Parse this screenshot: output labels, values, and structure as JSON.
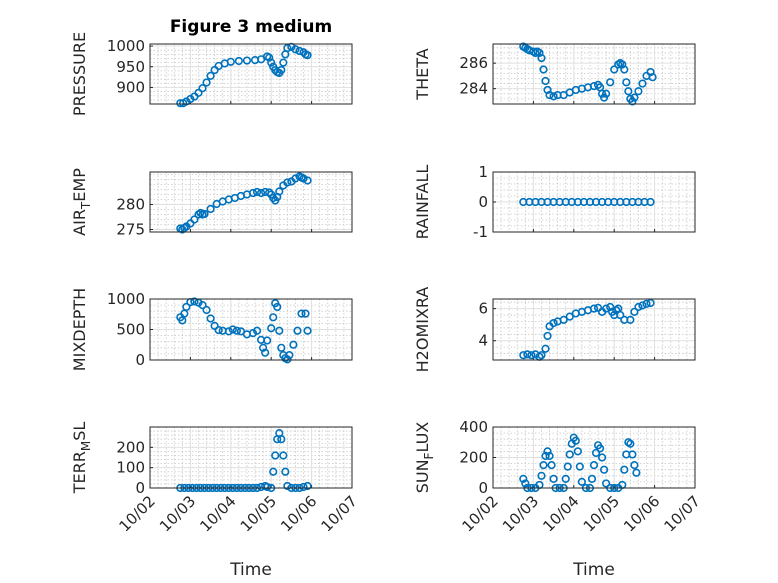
{
  "figure": {
    "title": "Figure 3 medium",
    "xlabel": "Time",
    "xticks": [
      "10/02",
      "10/03",
      "10/04",
      "10/05",
      "10/06",
      "10/07"
    ],
    "marker_color": "#0072BD"
  },
  "chart_data": [
    {
      "type": "scatter",
      "name": "PRESSURE",
      "ylabel_parts": [
        "PRESSURE"
      ],
      "xlim": [
        0,
        5
      ],
      "ylim": [
        860,
        1005
      ],
      "yticks": [
        900,
        950,
        1000
      ],
      "grid": true,
      "points": [
        [
          0.75,
          862
        ],
        [
          0.82,
          862
        ],
        [
          0.9,
          866
        ],
        [
          1.0,
          872
        ],
        [
          1.1,
          878
        ],
        [
          1.2,
          887
        ],
        [
          1.3,
          898
        ],
        [
          1.4,
          912
        ],
        [
          1.5,
          928
        ],
        [
          1.6,
          942
        ],
        [
          1.7,
          952
        ],
        [
          1.85,
          958
        ],
        [
          2.0,
          962
        ],
        [
          2.2,
          964
        ],
        [
          2.4,
          965
        ],
        [
          2.6,
          966
        ],
        [
          2.75,
          968
        ],
        [
          2.9,
          975
        ],
        [
          2.95,
          972
        ],
        [
          3.0,
          960
        ],
        [
          3.05,
          950
        ],
        [
          3.1,
          942
        ],
        [
          3.15,
          937
        ],
        [
          3.2,
          935
        ],
        [
          3.25,
          942
        ],
        [
          3.3,
          960
        ],
        [
          3.35,
          980
        ],
        [
          3.4,
          995
        ],
        [
          3.5,
          998
        ],
        [
          3.6,
          992
        ],
        [
          3.7,
          988
        ],
        [
          3.8,
          985
        ],
        [
          3.85,
          980
        ],
        [
          3.9,
          978
        ]
      ]
    },
    {
      "type": "scatter",
      "name": "THETA",
      "ylabel_parts": [
        "THETA"
      ],
      "xlim": [
        0,
        5
      ],
      "ylim": [
        282.8,
        287.5
      ],
      "yticks": [
        284,
        286
      ],
      "grid": true,
      "points": [
        [
          0.75,
          287.3
        ],
        [
          0.8,
          287.2
        ],
        [
          0.85,
          287.1
        ],
        [
          0.9,
          287.0
        ],
        [
          1.0,
          286.9
        ],
        [
          1.05,
          286.8
        ],
        [
          1.1,
          286.9
        ],
        [
          1.15,
          286.8
        ],
        [
          1.2,
          286.4
        ],
        [
          1.25,
          285.5
        ],
        [
          1.3,
          284.6
        ],
        [
          1.35,
          283.9
        ],
        [
          1.4,
          283.5
        ],
        [
          1.5,
          283.4
        ],
        [
          1.6,
          283.5
        ],
        [
          1.75,
          283.5
        ],
        [
          1.9,
          283.7
        ],
        [
          2.05,
          283.9
        ],
        [
          2.2,
          284.0
        ],
        [
          2.35,
          284.1
        ],
        [
          2.5,
          284.2
        ],
        [
          2.6,
          284.3
        ],
        [
          2.65,
          284.1
        ],
        [
          2.7,
          283.6
        ],
        [
          2.75,
          283.3
        ],
        [
          2.8,
          283.6
        ],
        [
          2.9,
          284.5
        ],
        [
          3.0,
          285.5
        ],
        [
          3.1,
          285.9
        ],
        [
          3.15,
          286.0
        ],
        [
          3.2,
          285.9
        ],
        [
          3.25,
          285.5
        ],
        [
          3.3,
          284.5
        ],
        [
          3.35,
          283.8
        ],
        [
          3.4,
          283.2
        ],
        [
          3.45,
          283.0
        ],
        [
          3.5,
          283.3
        ],
        [
          3.6,
          283.8
        ],
        [
          3.7,
          284.4
        ],
        [
          3.8,
          285.0
        ],
        [
          3.9,
          285.3
        ],
        [
          3.95,
          284.9
        ]
      ]
    },
    {
      "type": "scatter",
      "name": "AIR_TEMP",
      "ylabel_parts": [
        "AIR",
        "T",
        "EMP"
      ],
      "xlim": [
        0,
        5
      ],
      "ylim": [
        274.5,
        286.5
      ],
      "yticks": [
        275,
        280
      ],
      "grid": true,
      "points": [
        [
          0.75,
          275.2
        ],
        [
          0.8,
          275.0
        ],
        [
          0.85,
          275.3
        ],
        [
          0.9,
          275.6
        ],
        [
          1.0,
          276.2
        ],
        [
          1.1,
          277.0
        ],
        [
          1.2,
          278.0
        ],
        [
          1.25,
          278.3
        ],
        [
          1.3,
          278.0
        ],
        [
          1.35,
          278.1
        ],
        [
          1.5,
          279.1
        ],
        [
          1.65,
          280.1
        ],
        [
          1.8,
          280.6
        ],
        [
          1.95,
          281.0
        ],
        [
          2.1,
          281.3
        ],
        [
          2.25,
          281.7
        ],
        [
          2.4,
          282.0
        ],
        [
          2.55,
          282.3
        ],
        [
          2.65,
          282.5
        ],
        [
          2.75,
          282.3
        ],
        [
          2.85,
          282.5
        ],
        [
          2.95,
          282.4
        ],
        [
          3.0,
          282.0
        ],
        [
          3.05,
          281.3
        ],
        [
          3.1,
          280.8
        ],
        [
          3.15,
          281.5
        ],
        [
          3.2,
          282.6
        ],
        [
          3.3,
          283.8
        ],
        [
          3.4,
          284.4
        ],
        [
          3.5,
          284.6
        ],
        [
          3.6,
          285.2
        ],
        [
          3.7,
          285.6
        ],
        [
          3.75,
          285.4
        ],
        [
          3.8,
          285.2
        ],
        [
          3.9,
          284.8
        ]
      ]
    },
    {
      "type": "scatter",
      "name": "RAINFALL",
      "ylabel_parts": [
        "RAINFALL"
      ],
      "xlim": [
        0,
        5
      ],
      "ylim": [
        -1,
        1
      ],
      "yticks": [
        -1,
        0,
        1
      ],
      "grid": true,
      "points": [
        [
          0.75,
          0
        ],
        [
          0.9,
          0
        ],
        [
          1.05,
          0
        ],
        [
          1.2,
          0
        ],
        [
          1.35,
          0
        ],
        [
          1.5,
          0
        ],
        [
          1.65,
          0
        ],
        [
          1.8,
          0
        ],
        [
          1.95,
          0
        ],
        [
          2.1,
          0
        ],
        [
          2.25,
          0
        ],
        [
          2.4,
          0
        ],
        [
          2.55,
          0
        ],
        [
          2.7,
          0
        ],
        [
          2.85,
          0
        ],
        [
          3.0,
          0
        ],
        [
          3.15,
          0
        ],
        [
          3.3,
          0
        ],
        [
          3.45,
          0
        ],
        [
          3.6,
          0
        ],
        [
          3.75,
          0
        ],
        [
          3.9,
          0
        ]
      ]
    },
    {
      "type": "scatter",
      "name": "MIXDEPTH",
      "ylabel_parts": [
        "MIXDEPTH"
      ],
      "xlim": [
        0,
        5
      ],
      "ylim": [
        0,
        1000
      ],
      "yticks": [
        0,
        500,
        1000
      ],
      "grid": true,
      "points": [
        [
          0.75,
          700
        ],
        [
          0.8,
          650
        ],
        [
          0.85,
          760
        ],
        [
          0.9,
          870
        ],
        [
          1.0,
          950
        ],
        [
          1.1,
          960
        ],
        [
          1.2,
          940
        ],
        [
          1.3,
          900
        ],
        [
          1.4,
          820
        ],
        [
          1.5,
          680
        ],
        [
          1.6,
          560
        ],
        [
          1.7,
          490
        ],
        [
          1.8,
          480
        ],
        [
          1.95,
          470
        ],
        [
          2.05,
          500
        ],
        [
          2.15,
          480
        ],
        [
          2.25,
          470
        ],
        [
          2.4,
          420
        ],
        [
          2.55,
          440
        ],
        [
          2.65,
          480
        ],
        [
          2.75,
          330
        ],
        [
          2.8,
          200
        ],
        [
          2.85,
          120
        ],
        [
          2.9,
          320
        ],
        [
          3.0,
          520
        ],
        [
          3.05,
          700
        ],
        [
          3.1,
          930
        ],
        [
          3.15,
          870
        ],
        [
          3.2,
          480
        ],
        [
          3.25,
          200
        ],
        [
          3.3,
          80
        ],
        [
          3.35,
          30
        ],
        [
          3.4,
          10
        ],
        [
          3.45,
          80
        ],
        [
          3.55,
          250
        ],
        [
          3.65,
          480
        ],
        [
          3.75,
          760
        ],
        [
          3.85,
          760
        ],
        [
          3.9,
          480
        ]
      ]
    },
    {
      "type": "scatter",
      "name": "H2OMIXRA",
      "ylabel_parts": [
        "H2OMIXRA"
      ],
      "xlim": [
        0,
        5
      ],
      "ylim": [
        2.8,
        6.6
      ],
      "yticks": [
        4,
        6
      ],
      "grid": true,
      "points": [
        [
          0.75,
          3.1
        ],
        [
          0.85,
          3.15
        ],
        [
          0.95,
          3.1
        ],
        [
          1.05,
          3.15
        ],
        [
          1.15,
          3.0
        ],
        [
          1.2,
          3.1
        ],
        [
          1.3,
          3.5
        ],
        [
          1.35,
          4.3
        ],
        [
          1.4,
          4.9
        ],
        [
          1.5,
          5.1
        ],
        [
          1.6,
          5.2
        ],
        [
          1.75,
          5.3
        ],
        [
          1.9,
          5.5
        ],
        [
          2.05,
          5.7
        ],
        [
          2.2,
          5.8
        ],
        [
          2.35,
          5.9
        ],
        [
          2.5,
          6.0
        ],
        [
          2.6,
          6.05
        ],
        [
          2.7,
          5.8
        ],
        [
          2.8,
          6.0
        ],
        [
          2.9,
          6.1
        ],
        [
          2.95,
          5.8
        ],
        [
          3.0,
          5.6
        ],
        [
          3.05,
          5.9
        ],
        [
          3.1,
          6.0
        ],
        [
          3.15,
          5.6
        ],
        [
          3.25,
          5.3
        ],
        [
          3.4,
          5.3
        ],
        [
          3.5,
          5.8
        ],
        [
          3.6,
          6.1
        ],
        [
          3.7,
          6.2
        ],
        [
          3.8,
          6.3
        ],
        [
          3.9,
          6.35
        ]
      ]
    },
    {
      "type": "scatter",
      "name": "TERR_MSL",
      "ylabel_parts": [
        "TERR",
        "M",
        "SL"
      ],
      "xlim": [
        0,
        5
      ],
      "ylim": [
        0,
        300
      ],
      "yticks": [
        0,
        100,
        200
      ],
      "grid": true,
      "points": [
        [
          0.75,
          0
        ],
        [
          0.85,
          0
        ],
        [
          0.95,
          0
        ],
        [
          1.05,
          0
        ],
        [
          1.15,
          0
        ],
        [
          1.25,
          0
        ],
        [
          1.35,
          0
        ],
        [
          1.45,
          0
        ],
        [
          1.55,
          0
        ],
        [
          1.65,
          0
        ],
        [
          1.75,
          0
        ],
        [
          1.85,
          0
        ],
        [
          1.95,
          0
        ],
        [
          2.05,
          0
        ],
        [
          2.15,
          0
        ],
        [
          2.25,
          0
        ],
        [
          2.35,
          0
        ],
        [
          2.45,
          0
        ],
        [
          2.55,
          0
        ],
        [
          2.65,
          0
        ],
        [
          2.75,
          5
        ],
        [
          2.85,
          10
        ],
        [
          2.9,
          5
        ],
        [
          3.0,
          0
        ],
        [
          3.05,
          80
        ],
        [
          3.1,
          160
        ],
        [
          3.15,
          240
        ],
        [
          3.2,
          270
        ],
        [
          3.25,
          240
        ],
        [
          3.3,
          160
        ],
        [
          3.35,
          80
        ],
        [
          3.4,
          10
        ],
        [
          3.5,
          0
        ],
        [
          3.6,
          0
        ],
        [
          3.7,
          0
        ],
        [
          3.8,
          5
        ],
        [
          3.9,
          10
        ]
      ]
    },
    {
      "type": "scatter",
      "name": "SUN_FLUX",
      "ylabel_parts": [
        "SUN",
        "F",
        "LUX"
      ],
      "xlim": [
        0,
        5
      ],
      "ylim": [
        0,
        400
      ],
      "yticks": [
        0,
        200,
        400
      ],
      "grid": true,
      "points": [
        [
          0.75,
          60
        ],
        [
          0.8,
          30
        ],
        [
          0.85,
          0
        ],
        [
          0.95,
          0
        ],
        [
          1.05,
          0
        ],
        [
          1.15,
          20
        ],
        [
          1.2,
          80
        ],
        [
          1.25,
          150
        ],
        [
          1.3,
          210
        ],
        [
          1.35,
          240
        ],
        [
          1.4,
          210
        ],
        [
          1.45,
          150
        ],
        [
          1.5,
          60
        ],
        [
          1.55,
          0
        ],
        [
          1.65,
          0
        ],
        [
          1.75,
          0
        ],
        [
          1.8,
          60
        ],
        [
          1.85,
          140
        ],
        [
          1.9,
          220
        ],
        [
          1.95,
          290
        ],
        [
          2.0,
          330
        ],
        [
          2.05,
          310
        ],
        [
          2.1,
          240
        ],
        [
          2.15,
          140
        ],
        [
          2.2,
          40
        ],
        [
          2.3,
          0
        ],
        [
          2.4,
          0
        ],
        [
          2.45,
          60
        ],
        [
          2.5,
          150
        ],
        [
          2.55,
          230
        ],
        [
          2.6,
          280
        ],
        [
          2.65,
          260
        ],
        [
          2.7,
          200
        ],
        [
          2.75,
          120
        ],
        [
          2.8,
          30
        ],
        [
          2.9,
          0
        ],
        [
          3.0,
          0
        ],
        [
          3.1,
          0
        ],
        [
          3.2,
          20
        ],
        [
          3.25,
          120
        ],
        [
          3.3,
          220
        ],
        [
          3.35,
          300
        ],
        [
          3.4,
          290
        ],
        [
          3.45,
          220
        ],
        [
          3.5,
          150
        ],
        [
          3.55,
          100
        ]
      ]
    }
  ]
}
